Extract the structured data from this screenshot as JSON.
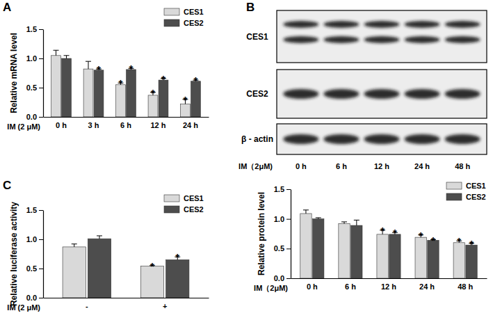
{
  "chart_data": [
    {
      "type": "bar",
      "title": "A",
      "ylabel": "Relative  mRNA level",
      "xlabel": "IM (2 μM)",
      "categories": [
        "0 h",
        "3 h",
        "6 h",
        "12 h",
        "24 h"
      ],
      "series": [
        {
          "name": "CES1",
          "color": "#d9d9d9",
          "values": [
            1.05,
            0.82,
            0.55,
            0.37,
            0.22
          ],
          "errors": [
            0.09,
            0.13,
            0.03,
            0.05,
            0.08
          ],
          "annotations": [
            null,
            null,
            "*",
            "*",
            "*"
          ]
        },
        {
          "name": "CES2",
          "color": "#4d4d4d",
          "values": [
            1.0,
            0.8,
            0.81,
            0.63,
            0.61
          ],
          "errors": [
            0.05,
            0.02,
            0.02,
            0.03,
            0.02
          ],
          "annotations": [
            null,
            "*",
            "*",
            "*",
            "*"
          ]
        }
      ],
      "ylim": [
        0,
        1.5
      ],
      "yticks": [
        {
          "value": 0,
          "label": "0.0"
        },
        {
          "value": 0.5,
          "label": "0.5"
        },
        {
          "value": 1,
          "label": "1.0"
        },
        {
          "value": 1.5,
          "label": "1.5"
        }
      ],
      "legend": "upper right"
    },
    {
      "type": "blot",
      "title": "B",
      "rows": [
        "CES1",
        "CES2",
        "β - actin"
      ],
      "xlabel": "IM（2μM)",
      "categories": [
        "0 h",
        "6 h",
        "12 h",
        "24 h",
        "48 h"
      ]
    },
    {
      "type": "bar",
      "ylabel": "Relative  protein level",
      "xlabel": "IM（2μM)",
      "categories": [
        "0 h",
        "6 h",
        "12 h",
        "24 h",
        "48 h"
      ],
      "series": [
        {
          "name": "CES1",
          "color": "#d9d9d9",
          "values": [
            1.09,
            0.92,
            0.74,
            0.69,
            0.6
          ],
          "errors": [
            0.06,
            0.03,
            0.07,
            0.04,
            0.03
          ],
          "annotations": [
            null,
            null,
            "*",
            "*",
            "*"
          ]
        },
        {
          "name": "CES2",
          "color": "#4d4d4d",
          "values": [
            1.0,
            0.89,
            0.74,
            0.64,
            0.56
          ],
          "errors": [
            0.02,
            0.09,
            0.03,
            0.01,
            0.03
          ],
          "annotations": [
            null,
            null,
            "*",
            "*",
            "*"
          ]
        }
      ],
      "ylim": [
        0,
        1.5
      ],
      "yticks": [
        {
          "value": 0,
          "label": "0.0"
        },
        {
          "value": 0.5,
          "label": "0.5"
        },
        {
          "value": 1,
          "label": "1.0"
        },
        {
          "value": 1.5,
          "label": "1.5"
        }
      ],
      "legend": "upper right"
    },
    {
      "type": "bar",
      "title": "C",
      "ylabel": "Relative luciferase activity",
      "xlabel": "IM (2 μM)",
      "categories": [
        "-",
        "+"
      ],
      "series": [
        {
          "name": "CES1",
          "color": "#d9d9d9",
          "values": [
            0.87,
            0.54
          ],
          "errors": [
            0.05,
            0.01
          ],
          "annotations": [
            null,
            "*"
          ]
        },
        {
          "name": "CES2",
          "color": "#4d4d4d",
          "values": [
            1.01,
            0.65
          ],
          "errors": [
            0.05,
            0.05
          ],
          "annotations": [
            null,
            "*"
          ]
        }
      ],
      "ylim": [
        0,
        1.5
      ],
      "yticks": [
        {
          "value": 0,
          "label": "0.0"
        },
        {
          "value": 0.5,
          "label": "0.5"
        },
        {
          "value": 1,
          "label": "1.0"
        },
        {
          "value": 1.5,
          "label": "1.5"
        }
      ],
      "legend": "upper right"
    }
  ]
}
